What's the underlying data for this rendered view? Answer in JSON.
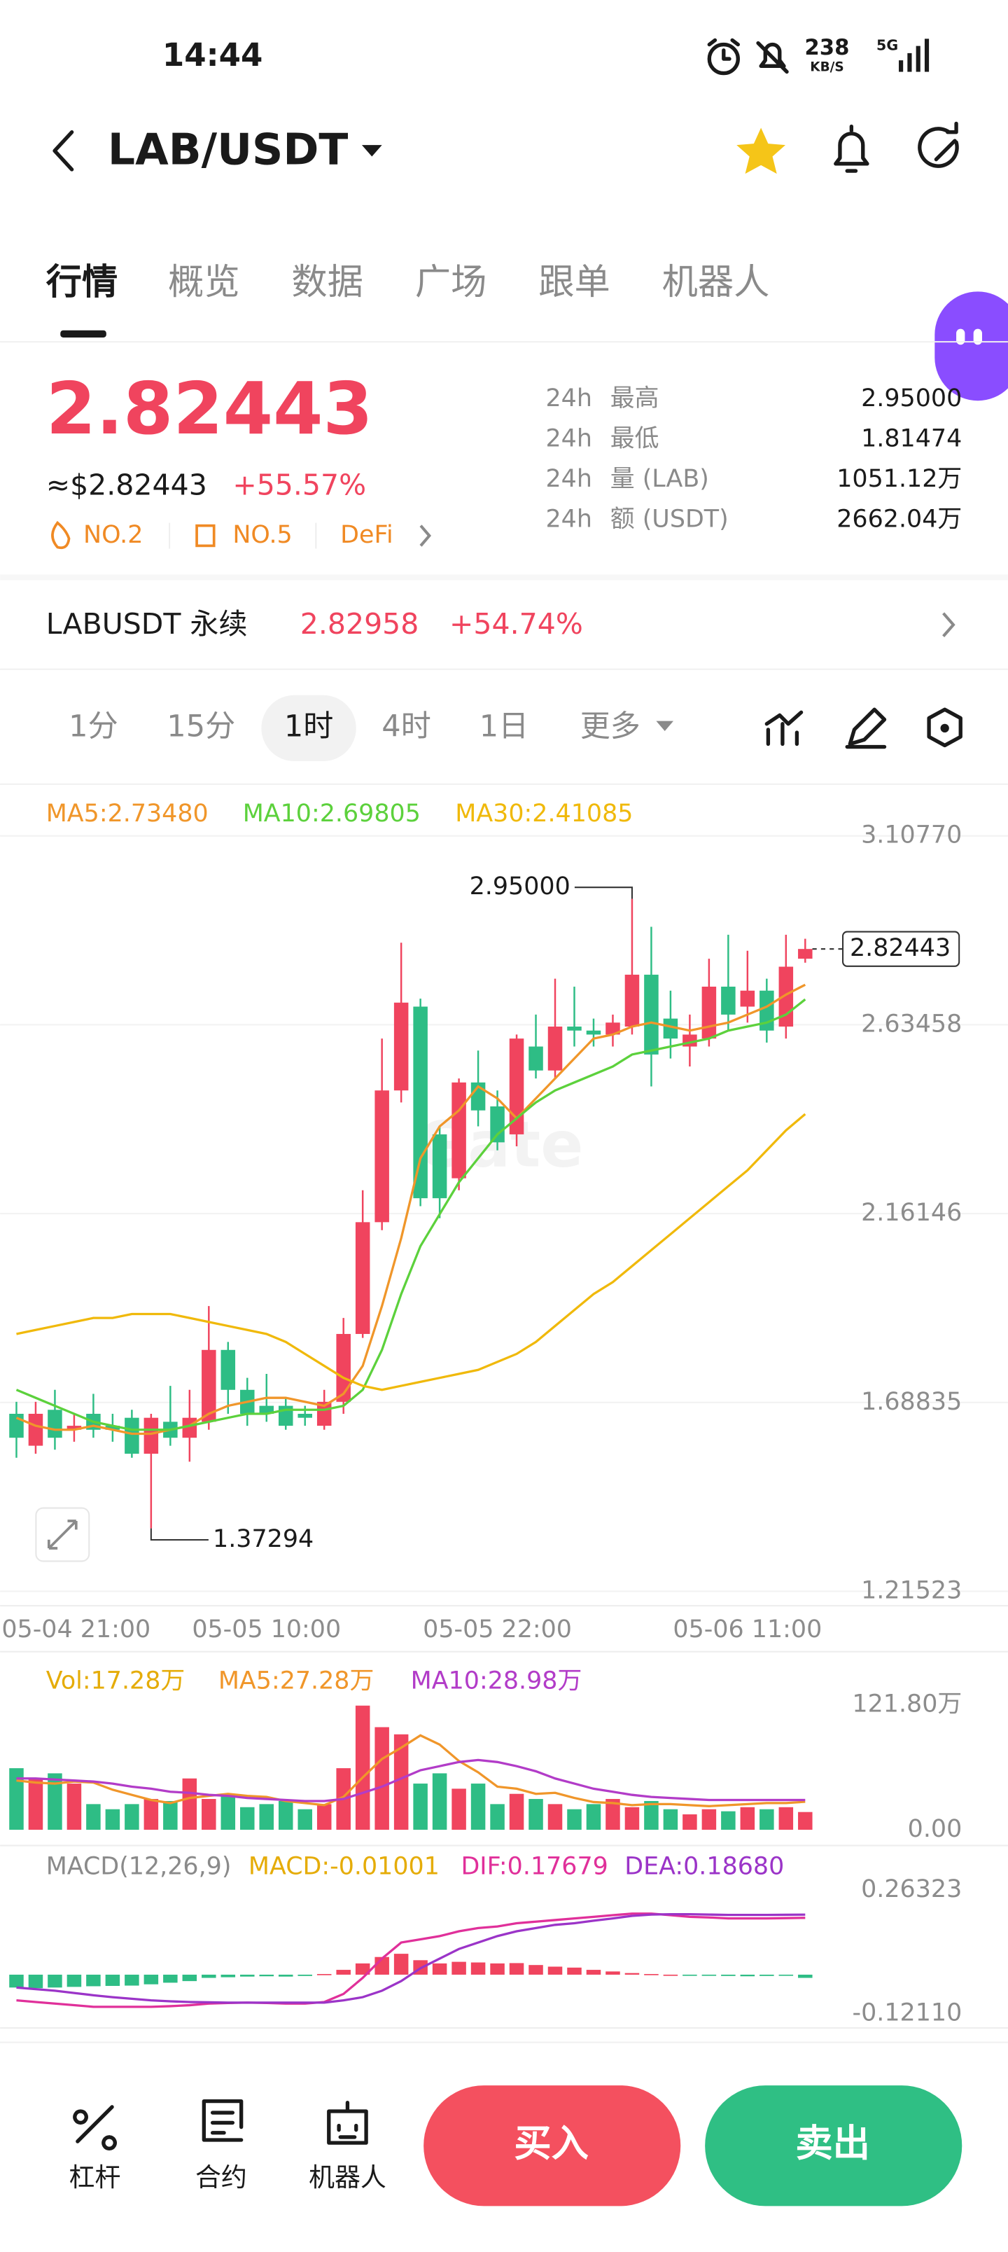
{
  "status_bar": {
    "time": "14:44",
    "speed": "238",
    "speed_unit": "KB/S",
    "network": "5G"
  },
  "header": {
    "pair": "LAB/USDT"
  },
  "tabs": [
    "行情",
    "概览",
    "数据",
    "广场",
    "跟单",
    "机器人"
  ],
  "price": {
    "last": "2.82443",
    "usd": "≈$2.82443",
    "change": "+55.57%",
    "tags": [
      "NO.2",
      "NO.5",
      "DeFi"
    ]
  },
  "stats": [
    {
      "period": "24h",
      "label": "最高",
      "value": "2.95000"
    },
    {
      "period": "24h",
      "label": "最低",
      "value": "1.81474"
    },
    {
      "period": "24h",
      "label": "量 (LAB)",
      "value": "1051.12万"
    },
    {
      "period": "24h",
      "label": "额 (USDT)",
      "value": "2662.04万"
    }
  ],
  "perpetual": {
    "name": "LABUSDT 永续",
    "price": "2.82958",
    "change": "+54.74%"
  },
  "intervals": [
    "1分",
    "15分",
    "1时",
    "4时",
    "1日",
    "更多"
  ],
  "watermark": "Gate",
  "chart_data": [
    {
      "type": "candlestick",
      "categories": [
        "05-04 21:00",
        null,
        null,
        null,
        null,
        null,
        null,
        null,
        null,
        null,
        null,
        null,
        null,
        "05-05 10:00",
        null,
        null,
        null,
        null,
        null,
        null,
        null,
        null,
        null,
        null,
        null,
        "05-05 22:00",
        null,
        null,
        null,
        null,
        null,
        null,
        null,
        null,
        null,
        null,
        null,
        null,
        "05-06 11:00",
        null,
        null,
        null
      ],
      "open": [
        1.66,
        1.58,
        1.67,
        1.62,
        1.66,
        1.63,
        1.65,
        1.56,
        1.64,
        1.6,
        1.64,
        1.82,
        1.72,
        1.68,
        1.68,
        1.66,
        1.63,
        1.69,
        1.86,
        2.14,
        2.47,
        2.68,
        2.36,
        2.25,
        2.49,
        2.43,
        2.36,
        2.58,
        2.52,
        2.63,
        2.62,
        2.61,
        2.63,
        2.76,
        2.65,
        2.58,
        2.6,
        2.73,
        2.68,
        2.72,
        2.63,
        2.8
      ],
      "high": [
        1.69,
        1.69,
        1.72,
        1.66,
        1.71,
        1.66,
        1.67,
        1.66,
        1.73,
        1.72,
        1.93,
        1.84,
        1.75,
        1.76,
        1.7,
        1.68,
        1.72,
        1.9,
        2.22,
        2.6,
        2.84,
        2.7,
        2.38,
        2.5,
        2.57,
        2.47,
        2.61,
        2.66,
        2.75,
        2.73,
        2.65,
        2.66,
        2.95,
        2.88,
        2.72,
        2.66,
        2.8,
        2.86,
        2.82,
        2.75,
        2.86,
        2.85
      ],
      "low": [
        1.55,
        1.56,
        1.57,
        1.59,
        1.6,
        1.59,
        1.55,
        1.37294,
        1.58,
        1.54,
        1.62,
        1.66,
        1.63,
        1.64,
        1.62,
        1.63,
        1.62,
        1.66,
        1.85,
        2.12,
        2.44,
        2.18,
        2.15,
        2.22,
        2.38,
        2.32,
        2.33,
        2.5,
        2.5,
        2.58,
        2.58,
        2.58,
        2.61,
        2.48,
        2.55,
        2.53,
        2.58,
        2.62,
        2.64,
        2.59,
        2.6,
        2.79
      ],
      "close": [
        1.6,
        1.66,
        1.6,
        1.63,
        1.62,
        1.62,
        1.56,
        1.65,
        1.6,
        1.65,
        1.82,
        1.72,
        1.66,
        1.66,
        1.63,
        1.65,
        1.69,
        1.86,
        2.14,
        2.47,
        2.69,
        2.2,
        2.2,
        2.49,
        2.42,
        2.34,
        2.6,
        2.52,
        2.63,
        2.62,
        2.61,
        2.64,
        2.76,
        2.56,
        2.6,
        2.61,
        2.73,
        2.66,
        2.72,
        2.62,
        2.78,
        2.82443
      ],
      "up_color": "#f0445e",
      "down_color": "#2ebd85",
      "series": [
        {
          "name": "MA5:2.73480",
          "color": "#f0962a",
          "values": [
            1.65,
            1.63,
            1.62,
            1.62,
            1.63,
            1.62,
            1.61,
            1.61,
            1.62,
            1.63,
            1.66,
            1.68,
            1.69,
            1.7,
            1.7,
            1.69,
            1.68,
            1.71,
            1.78,
            1.93,
            2.1,
            2.3,
            2.38,
            2.42,
            2.48,
            2.45,
            2.4,
            2.45,
            2.5,
            2.55,
            2.6,
            2.61,
            2.63,
            2.64,
            2.63,
            2.62,
            2.63,
            2.64,
            2.66,
            2.68,
            2.71,
            2.7348
          ]
        },
        {
          "name": "MA10:2.69805",
          "color": "#5cd13c",
          "values": [
            1.72,
            1.7,
            1.68,
            1.66,
            1.64,
            1.63,
            1.62,
            1.62,
            1.62,
            1.63,
            1.64,
            1.65,
            1.66,
            1.66,
            1.67,
            1.67,
            1.67,
            1.68,
            1.72,
            1.82,
            1.96,
            2.08,
            2.16,
            2.24,
            2.3,
            2.36,
            2.4,
            2.44,
            2.47,
            2.49,
            2.51,
            2.53,
            2.56,
            2.57,
            2.58,
            2.59,
            2.6,
            2.62,
            2.63,
            2.64,
            2.66,
            2.69805
          ]
        },
        {
          "name": "MA30:2.41085",
          "color": "#f0b90b",
          "values": [
            1.86,
            1.87,
            1.88,
            1.89,
            1.9,
            1.9,
            1.91,
            1.91,
            1.91,
            1.9,
            1.89,
            1.88,
            1.87,
            1.86,
            1.84,
            1.81,
            1.78,
            1.75,
            1.73,
            1.72,
            1.73,
            1.74,
            1.75,
            1.76,
            1.77,
            1.79,
            1.81,
            1.84,
            1.88,
            1.92,
            1.96,
            1.99,
            2.03,
            2.07,
            2.11,
            2.15,
            2.19,
            2.23,
            2.27,
            2.32,
            2.37,
            2.41085
          ]
        }
      ],
      "ylim": [
        1.21523,
        3.1077
      ],
      "yticks": [
        {
          "value": 3.1077,
          "label": "3.10770"
        },
        2.63458,
        2.16146,
        1.68835,
        1.21523
      ],
      "grid": true,
      "annotations": [
        {
          "value": 2.95,
          "label": "2.95000"
        },
        {
          "value": 1.37294,
          "label": "1.37294"
        }
      ],
      "last_price": 2.82443
    },
    {
      "type": "bar",
      "name": "Vol:17.28万",
      "color": "#e5ac08",
      "values": [
        60,
        50,
        55,
        45,
        25,
        20,
        25,
        30,
        28,
        50,
        30,
        35,
        22,
        25,
        28,
        20,
        25,
        60,
        121,
        100,
        93,
        45,
        55,
        40,
        45,
        25,
        35,
        30,
        25,
        20,
        25,
        30,
        22,
        28,
        20,
        15,
        20,
        18,
        22,
        20,
        22,
        17.28
      ],
      "series": [
        {
          "name": "MA5:27.28万",
          "color": "#f0962a",
          "values": [
            48,
            46,
            45,
            47,
            46,
            39,
            34,
            29,
            26,
            31,
            33,
            35,
            33,
            32,
            28,
            26,
            24,
            32,
            51,
            69,
            80,
            92,
            83,
            67,
            56,
            42,
            40,
            35,
            36,
            31,
            27,
            26,
            24,
            25,
            25,
            24,
            23,
            24,
            25,
            26,
            26,
            27.28
          ]
        },
        {
          "name": "MA10:28.98万",
          "color": "#b23cc8",
          "values": [
            50,
            50,
            49,
            48,
            47,
            45,
            42,
            40,
            37,
            36,
            34,
            33,
            31,
            30,
            29,
            28,
            28,
            30,
            36,
            42,
            50,
            58,
            62,
            66,
            68,
            66,
            62,
            57,
            50,
            45,
            40,
            37,
            34,
            32,
            31,
            30,
            29,
            29,
            29,
            29,
            29,
            28.98
          ]
        }
      ],
      "ylim": [
        0,
        121.8
      ],
      "yticks": [
        {
          "value": 121.8,
          "label": "121.80万"
        },
        {
          "value": 0,
          "label": "0.00"
        }
      ]
    },
    {
      "type": "bar",
      "title": "MACD(12,26,9)",
      "name": "MACD:-0.01001",
      "color": "#e5ac08",
      "values": [
        -0.04,
        -0.042,
        -0.04,
        -0.038,
        -0.036,
        -0.035,
        -0.034,
        -0.03,
        -0.025,
        -0.02,
        -0.01,
        -0.008,
        -0.006,
        -0.005,
        -0.006,
        -0.004,
        0.002,
        0.015,
        0.035,
        0.055,
        0.065,
        0.045,
        0.035,
        0.04,
        0.038,
        0.035,
        0.036,
        0.03,
        0.025,
        0.022,
        0.015,
        0.01,
        0.005,
        0.002,
        0,
        -0.002,
        -0.003,
        -0.004,
        -0.005,
        -0.004,
        -0.003,
        -0.01001
      ],
      "series": [
        {
          "name": "DIF:0.17679",
          "color": "#e0309a",
          "values": [
            -0.08,
            -0.085,
            -0.09,
            -0.095,
            -0.1,
            -0.1,
            -0.1,
            -0.1,
            -0.098,
            -0.095,
            -0.09,
            -0.088,
            -0.087,
            -0.088,
            -0.09,
            -0.09,
            -0.085,
            -0.06,
            -0.01,
            0.05,
            0.1,
            0.11,
            0.12,
            0.135,
            0.145,
            0.15,
            0.16,
            0.165,
            0.17,
            0.175,
            0.18,
            0.185,
            0.19,
            0.19,
            0.185,
            0.18,
            0.178,
            0.175,
            0.175,
            0.175,
            0.176,
            0.17679
          ]
        },
        {
          "name": "DEA:0.18680",
          "color": "#9b34c8",
          "values": [
            -0.04,
            -0.045,
            -0.05,
            -0.057,
            -0.064,
            -0.07,
            -0.075,
            -0.08,
            -0.083,
            -0.085,
            -0.086,
            -0.087,
            -0.087,
            -0.087,
            -0.087,
            -0.087,
            -0.087,
            -0.08,
            -0.07,
            -0.05,
            -0.02,
            0.02,
            0.05,
            0.08,
            0.1,
            0.12,
            0.135,
            0.145,
            0.155,
            0.16,
            0.168,
            0.175,
            0.183,
            0.187,
            0.188,
            0.188,
            0.187,
            0.186,
            0.186,
            0.186,
            0.1865,
            0.1868
          ]
        }
      ],
      "ylim": [
        -0.1211,
        0.26323
      ],
      "yticks": [
        0.26323,
        {
          "value": -0.1211,
          "label": "-0.12110"
        }
      ]
    }
  ],
  "bottom_nav": {
    "items": [
      "杠杆",
      "合约",
      "机器人"
    ],
    "buy": "买入",
    "sell": "卖出"
  }
}
